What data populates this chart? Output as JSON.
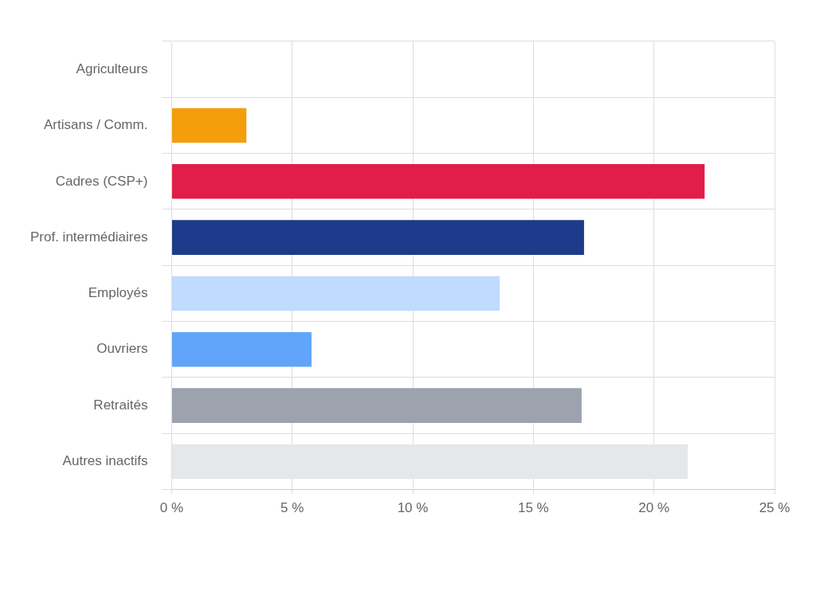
{
  "chart_data": {
    "type": "bar",
    "orientation": "horizontal",
    "categories": [
      "Agriculteurs",
      "Artisans / Comm.",
      "Cadres (CSP+)",
      "Prof. intermédiaires",
      "Employés",
      "Ouvriers",
      "Retraités",
      "Autres inactifs"
    ],
    "values": [
      0,
      3.1,
      22.1,
      17.1,
      13.6,
      5.8,
      17.0,
      21.4
    ],
    "colors": [
      "#16a34a",
      "#f59e0b",
      "#e11d48",
      "#1e3a8a",
      "#bfdbfe",
      "#60a5fa",
      "#9ca3af",
      "#e5e7eb"
    ],
    "xlim": [
      0,
      25
    ],
    "xticks": [
      {
        "value": 0,
        "label": "0 %"
      },
      {
        "value": 5,
        "label": "5 %"
      },
      {
        "value": 10,
        "label": "10 %"
      },
      {
        "value": 15,
        "label": "15 %"
      },
      {
        "value": 20,
        "label": "20 %"
      },
      {
        "value": 25,
        "label": "25 %"
      }
    ],
    "grid": true
  }
}
